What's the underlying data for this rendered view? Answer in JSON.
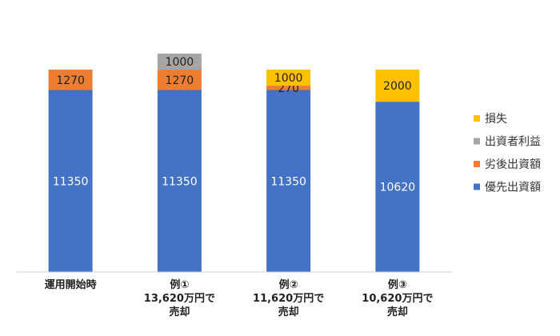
{
  "chart_data": {
    "type": "stacked-bar",
    "categories": [
      "運用開始時",
      "例①\n13,620万円で\n売却",
      "例②\n11,620万円で\n売却",
      "例③\n10,620万円で\n売却"
    ],
    "series": [
      {
        "name": "優先出資額",
        "color": "#4472c4",
        "values": [
          11350,
          11350,
          11350,
          10620
        ]
      },
      {
        "name": "劣後出資額",
        "color": "#ed7d31",
        "values": [
          1270,
          1270,
          270,
          null
        ]
      },
      {
        "name": "出資者利益",
        "color": "#a5a5a5",
        "values": [
          null,
          1000,
          null,
          null
        ]
      },
      {
        "name": "損失",
        "color": "#ffc000",
        "values": [
          null,
          null,
          1000,
          2000
        ]
      }
    ],
    "legend": "right"
  }
}
